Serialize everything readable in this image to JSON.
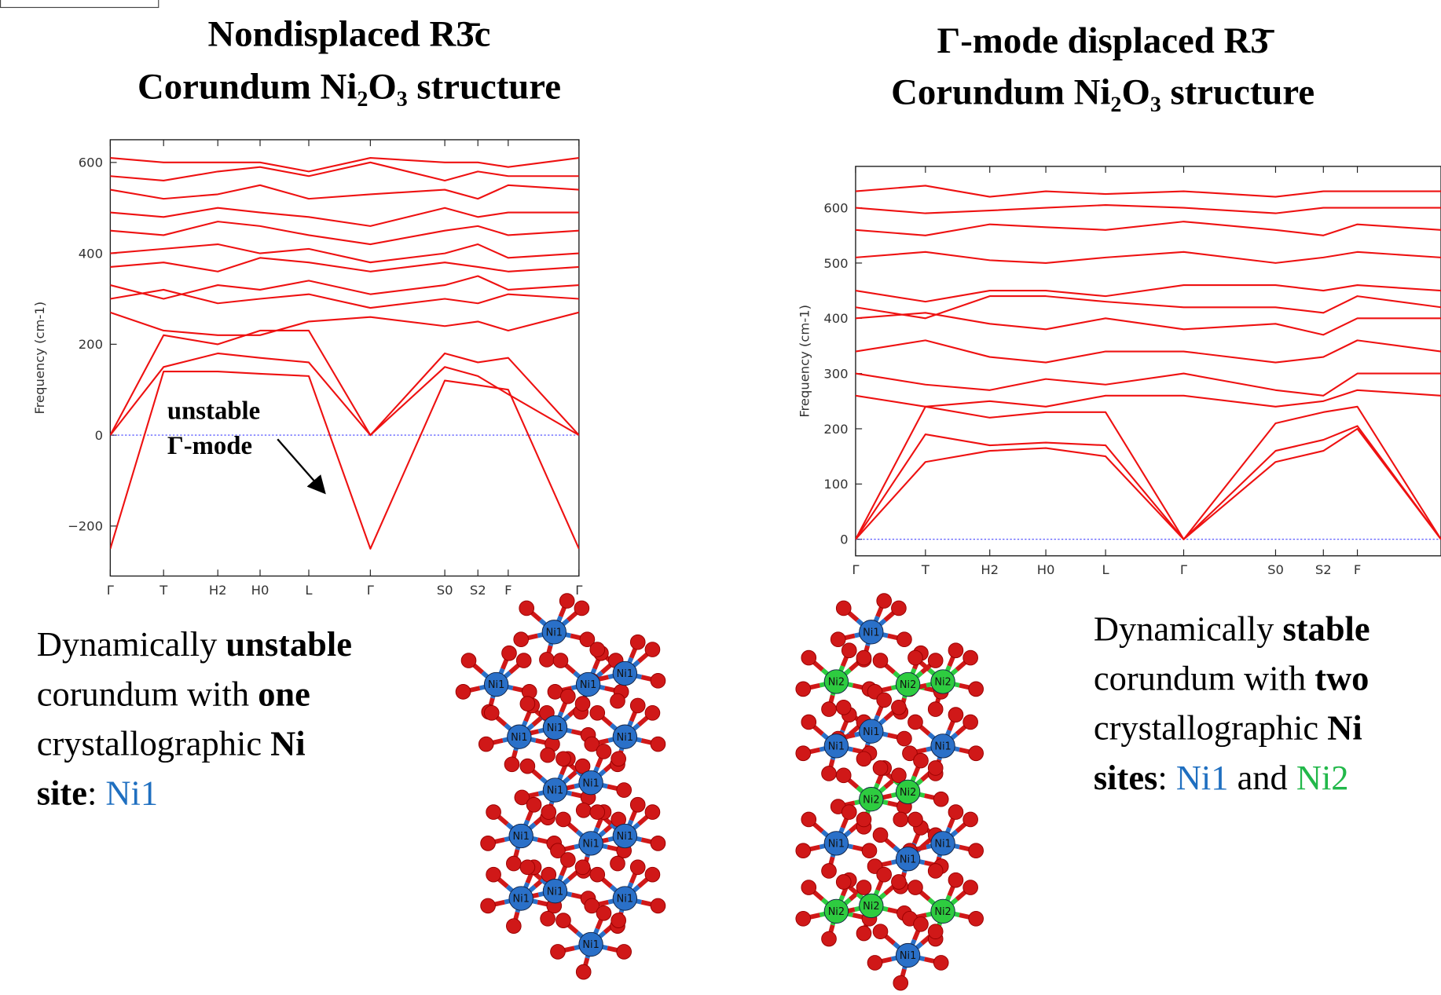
{
  "chart_data": [
    {
      "type": "line",
      "title": "Nondisplaced  R3̄c",
      "subtitle": "Corundum Ni₂O₃ structure",
      "ylabel": "Frequency (cm-1)",
      "annotation": [
        "unstable",
        "Γ-mode"
      ],
      "x": [
        0,
        58,
        117,
        163,
        216,
        283,
        364,
        400,
        433,
        510
      ],
      "xlim": [
        0,
        510
      ],
      "xticks": [
        {
          "value": 0,
          "label": "Γ"
        },
        {
          "value": 58,
          "label": "T"
        },
        {
          "value": 117,
          "label": "H2"
        },
        {
          "value": 163,
          "label": "H0"
        },
        {
          "value": 216,
          "label": "L"
        },
        {
          "value": 283,
          "label": "Γ"
        },
        {
          "value": 364,
          "label": "S0"
        },
        {
          "value": 400,
          "label": "S2"
        },
        {
          "value": 433,
          "label": "F"
        },
        {
          "value": 510,
          "label": "Γ"
        }
      ],
      "ylim": [
        -310,
        650
      ],
      "yticks": [
        {
          "value": -200,
          "label": "−200"
        },
        0,
        200,
        400,
        600
      ],
      "zero_line": true,
      "zero_line_color": "#4444ff",
      "series": [
        {
          "color": "#ee1111",
          "values": [
            -250,
            140,
            140,
            135,
            130,
            -250,
            120,
            110,
            100,
            -250
          ]
        },
        {
          "color": "#ee1111",
          "values": [
            0,
            150,
            180,
            170,
            160,
            0,
            150,
            130,
            90,
            0
          ]
        },
        {
          "color": "#ee1111",
          "values": [
            0,
            220,
            200,
            230,
            230,
            0,
            180,
            160,
            170,
            0
          ]
        },
        {
          "color": "#ee1111",
          "values": [
            270,
            230,
            220,
            220,
            250,
            260,
            240,
            250,
            230,
            270
          ]
        },
        {
          "color": "#ee1111",
          "values": [
            300,
            320,
            290,
            300,
            310,
            280,
            300,
            290,
            310,
            300
          ]
        },
        {
          "color": "#ee1111",
          "values": [
            330,
            300,
            330,
            320,
            340,
            310,
            330,
            350,
            320,
            330
          ]
        },
        {
          "color": "#ee1111",
          "values": [
            370,
            380,
            360,
            390,
            380,
            360,
            380,
            370,
            360,
            370
          ]
        },
        {
          "color": "#ee1111",
          "values": [
            400,
            410,
            420,
            400,
            410,
            380,
            400,
            420,
            390,
            400
          ]
        },
        {
          "color": "#ee1111",
          "values": [
            450,
            440,
            470,
            460,
            440,
            420,
            450,
            460,
            440,
            450
          ]
        },
        {
          "color": "#ee1111",
          "values": [
            490,
            480,
            500,
            490,
            480,
            460,
            500,
            480,
            490,
            490
          ]
        },
        {
          "color": "#ee1111",
          "values": [
            540,
            520,
            530,
            550,
            520,
            530,
            540,
            520,
            550,
            540
          ]
        },
        {
          "color": "#ee1111",
          "values": [
            570,
            560,
            580,
            590,
            570,
            600,
            560,
            580,
            570,
            570
          ]
        },
        {
          "color": "#ee1111",
          "values": [
            610,
            600,
            600,
            600,
            580,
            610,
            600,
            600,
            590,
            610
          ]
        }
      ]
    },
    {
      "type": "line",
      "title": "Γ-mode displaced  R3̄",
      "subtitle": "Corundum Ni₂O₃ structure",
      "ylabel": "Frequency (cm-1)",
      "x": [
        0,
        76,
        146,
        207,
        272,
        357,
        457,
        509,
        546,
        637
      ],
      "xlim": [
        0,
        637
      ],
      "xticks": [
        {
          "value": 0,
          "label": "Γ"
        },
        {
          "value": 76,
          "label": "T"
        },
        {
          "value": 146,
          "label": "H2"
        },
        {
          "value": 207,
          "label": "H0"
        },
        {
          "value": 272,
          "label": "L"
        },
        {
          "value": 357,
          "label": "Γ"
        },
        {
          "value": 457,
          "label": "S0"
        },
        {
          "value": 509,
          "label": "S2"
        },
        {
          "value": 546,
          "label": "F"
        }
      ],
      "ylim": [
        -30,
        675
      ],
      "yticks": [
        0,
        100,
        200,
        300,
        400,
        500,
        600
      ],
      "zero_line": true,
      "zero_line_color": "#4444ff",
      "series": [
        {
          "color": "#ee1111",
          "values": [
            0,
            140,
            160,
            165,
            150,
            0,
            140,
            160,
            200,
            0
          ]
        },
        {
          "color": "#ee1111",
          "values": [
            0,
            190,
            170,
            175,
            170,
            0,
            160,
            180,
            205,
            0
          ]
        },
        {
          "color": "#ee1111",
          "values": [
            0,
            240,
            220,
            230,
            230,
            0,
            210,
            230,
            240,
            0
          ]
        },
        {
          "color": "#ee1111",
          "values": [
            260,
            240,
            250,
            240,
            260,
            260,
            240,
            250,
            270,
            260
          ]
        },
        {
          "color": "#ee1111",
          "values": [
            300,
            280,
            270,
            290,
            280,
            300,
            270,
            260,
            300,
            300
          ]
        },
        {
          "color": "#ee1111",
          "values": [
            340,
            360,
            330,
            320,
            340,
            340,
            320,
            330,
            360,
            340
          ]
        },
        {
          "color": "#ee1111",
          "values": [
            400,
            410,
            390,
            380,
            400,
            380,
            390,
            370,
            400,
            400
          ]
        },
        {
          "color": "#ee1111",
          "values": [
            420,
            400,
            440,
            440,
            430,
            420,
            420,
            410,
            440,
            420
          ]
        },
        {
          "color": "#ee1111",
          "values": [
            450,
            430,
            450,
            450,
            440,
            460,
            460,
            450,
            460,
            450
          ]
        },
        {
          "color": "#ee1111",
          "values": [
            510,
            520,
            505,
            500,
            510,
            520,
            500,
            510,
            520,
            510
          ]
        },
        {
          "color": "#ee1111",
          "values": [
            560,
            550,
            570,
            565,
            560,
            575,
            560,
            550,
            570,
            560
          ]
        },
        {
          "color": "#ee1111",
          "values": [
            600,
            590,
            595,
            600,
            605,
            600,
            590,
            600,
            600,
            600
          ]
        },
        {
          "color": "#ee1111",
          "values": [
            630,
            640,
            620,
            630,
            625,
            630,
            620,
            630,
            630,
            630
          ]
        }
      ]
    }
  ],
  "captions": [
    {
      "lines": [
        [
          {
            "text": "Dynamically "
          },
          {
            "text": "unstable",
            "bold": true
          }
        ],
        [
          {
            "text": "corundum with "
          },
          {
            "text": "one",
            "bold": true
          }
        ],
        [
          {
            "text": "crystallographic "
          },
          {
            "text": "Ni",
            "bold": true
          }
        ],
        [
          {
            "text": "site",
            "bold": true
          },
          {
            "text": ": "
          },
          {
            "text": "Ni1",
            "color": "#1f6fc0"
          }
        ]
      ]
    },
    {
      "lines": [
        [
          {
            "text": "Dynamically "
          },
          {
            "text": "stable",
            "bold": true
          }
        ],
        [
          {
            "text": "corundum with "
          },
          {
            "text": "two",
            "bold": true
          }
        ],
        [
          {
            "text": "crystallographic "
          },
          {
            "text": "Ni",
            "bold": true
          }
        ],
        [
          {
            "text": "sites",
            "bold": true
          },
          {
            "text": ": "
          },
          {
            "text": "Ni1",
            "color": "#1f6fc0"
          },
          {
            "text": " and "
          },
          {
            "text": "Ni2",
            "color": "#22b84a"
          }
        ]
      ]
    }
  ],
  "atom_colors": {
    "Ni1": "#2a70c8",
    "Ni2": "#2ecc40",
    "O": "#d01818"
  },
  "structures": [
    {
      "labels": [
        "Ni1",
        "Ni1",
        "Ni1",
        "Ni1",
        "Ni1",
        "Ni1",
        "Ni1",
        "Ni1",
        "Ni1",
        "Ni1",
        "Ni1",
        "Ni1",
        "Ni1",
        "Ni1",
        "Ni1",
        "Ni1"
      ]
    },
    {
      "labels": [
        "Ni1",
        "Ni2",
        "Ni2",
        "Ni2",
        "Ni1",
        "Ni1",
        "Ni1",
        "Ni2",
        "Ni2",
        "Ni1",
        "Ni1",
        "Ni1",
        "Ni2",
        "Ni2",
        "Ni2",
        "Ni1"
      ]
    }
  ]
}
